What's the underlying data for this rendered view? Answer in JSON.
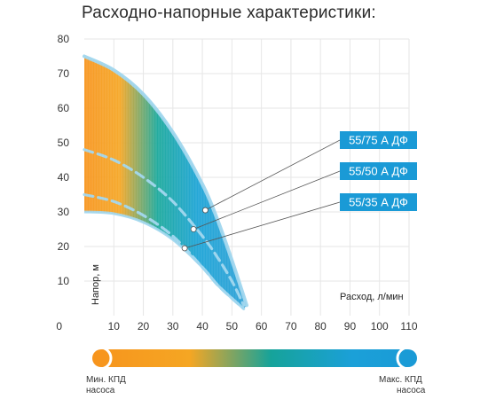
{
  "title": "Расходно-напорные характеристики:",
  "chart_data": {
    "type": "area",
    "xlabel": "Расход, л/мин",
    "ylabel": "Напор, м",
    "xlim": [
      0,
      110
    ],
    "ylim": [
      0,
      80
    ],
    "x_ticks": [
      10,
      20,
      30,
      40,
      50,
      60,
      70,
      80,
      90,
      100,
      110
    ],
    "y_ticks": [
      10,
      20,
      30,
      40,
      50,
      60,
      70,
      80
    ],
    "origin_label": "0",
    "grid": true,
    "series": [
      {
        "name": "55/75 А ДФ",
        "x": [
          0,
          10,
          20,
          30,
          40,
          45,
          50,
          55
        ],
        "y": [
          75,
          71,
          64,
          53,
          38,
          28,
          16,
          3
        ],
        "marker": [
          41,
          30.5
        ]
      },
      {
        "name": "55/50 А ДФ",
        "x": [
          0,
          10,
          20,
          30,
          40,
          45,
          50,
          54
        ],
        "y": [
          48,
          45,
          40,
          33,
          23,
          17,
          10,
          3
        ],
        "marker": [
          37,
          25
        ]
      },
      {
        "name": "55/35 А ДФ",
        "x": [
          0,
          10,
          20,
          30,
          40,
          45,
          50,
          54
        ],
        "y": [
          35,
          33,
          29,
          23,
          14,
          9,
          5,
          2
        ],
        "marker": [
          34,
          19.5
        ]
      }
    ],
    "lower_envelope": {
      "x": [
        0,
        10,
        20,
        30,
        40,
        45,
        50,
        54
      ],
      "y": [
        30,
        29.5,
        27,
        22,
        14,
        9,
        5,
        2
      ]
    },
    "gradient_colors": [
      "#f7941d",
      "#f5a623",
      "#16a39a",
      "#1ba0d8",
      "#2a9fd6"
    ],
    "curve_color": "#9fd6ee"
  },
  "efficiency_legend": {
    "min_label_line1": "Мин. КПД",
    "min_label_line2": "насоса",
    "max_label_line1": "Макс. КПД",
    "max_label_line2": "насоса",
    "min_color": "#f7941d",
    "max_color": "#1a9ad6"
  }
}
